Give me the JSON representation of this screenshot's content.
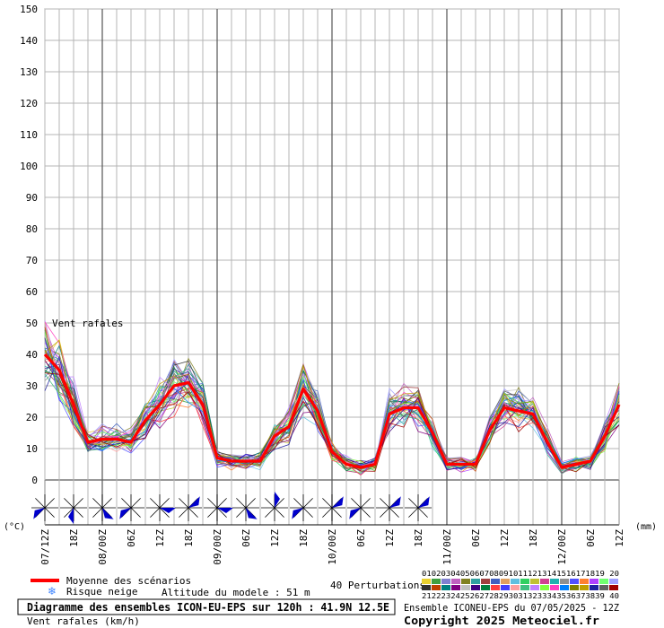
{
  "chart_data": {
    "type": "line",
    "annotation": "Vent rafales",
    "y_axis": {
      "min": 0,
      "max": 150,
      "step": 10,
      "ticks": [
        "150",
        "140",
        "130",
        "120",
        "110",
        "100",
        "90",
        "80",
        "70",
        "60",
        "50",
        "40",
        "30",
        "20",
        "10",
        "0"
      ]
    },
    "left_unit": "(°C)",
    "right_unit": "(mm)",
    "x_ticks": [
      "07/12Z",
      "18Z",
      "08/00Z",
      "06Z",
      "12Z",
      "18Z",
      "09/00Z",
      "06Z",
      "12Z",
      "18Z",
      "10/00Z",
      "06Z",
      "12Z",
      "18Z",
      "11/00Z",
      "06Z",
      "12Z",
      "18Z",
      "12/00Z",
      "06Z",
      "12Z"
    ],
    "mean_series": {
      "name": "Moyenne des scénarios",
      "color": "#ff0000",
      "x": [
        12,
        15,
        18,
        21,
        24,
        27,
        30,
        33,
        36,
        39,
        42,
        45,
        48,
        51,
        54,
        57,
        60,
        63,
        66,
        69,
        72,
        75,
        78,
        81,
        84,
        87,
        90,
        93,
        96,
        99,
        102,
        105,
        108,
        111,
        114,
        117,
        120,
        123,
        126,
        129,
        132
      ],
      "values": [
        40,
        35,
        24,
        12,
        13,
        13,
        12,
        19,
        24,
        30,
        31,
        24,
        7,
        6,
        6,
        6,
        14,
        17,
        29,
        22,
        9,
        5,
        4,
        5,
        21,
        23,
        23,
        15,
        5,
        5,
        5,
        16,
        23,
        22,
        21,
        12,
        4,
        5,
        6,
        14,
        24
      ]
    },
    "ensemble": {
      "count": 40,
      "spread_low_ratio": 0.72,
      "spread_high_ratio": 1.35
    },
    "wind_barbs": [
      {
        "x": 12,
        "dir": "SW"
      },
      {
        "x": 18,
        "dir": "S"
      },
      {
        "x": 24,
        "dir": "SE"
      },
      {
        "x": 30,
        "dir": "SW"
      },
      {
        "x": 36,
        "dir": "E"
      },
      {
        "x": 42,
        "dir": "NE"
      },
      {
        "x": 48,
        "dir": "E"
      },
      {
        "x": 54,
        "dir": "SE"
      },
      {
        "x": 60,
        "dir": "N"
      },
      {
        "x": 66,
        "dir": "SW"
      },
      {
        "x": 72,
        "dir": "NE"
      },
      {
        "x": 78,
        "dir": "SW"
      },
      {
        "x": 84,
        "dir": "NE"
      },
      {
        "x": 90,
        "dir": "NE"
      }
    ],
    "legend": {
      "mean_label": "Moyenne des scénarios",
      "snow_label": "Risque neige",
      "altitude_label": "Altitude du modele : 51 m",
      "perturbations_label": "40 Perturbations",
      "members_row1": "01020304050607080910111213141516171819 20",
      "members_row2": "21222324252627282930313233343536373839 40"
    },
    "footer": {
      "title": "Diagramme des ensembles ICON-EU-EPS sur 120h : 41.9N 12.5E",
      "variable": "Vent rafales (km/h)",
      "run": "Ensemble ICONEU-EPS du 07/05/2025 - 12Z",
      "copyright": "Copyright 2025 Meteociel.fr"
    },
    "colors": {
      "grid": "#b4b4b4",
      "day_line": "#555555",
      "mean": "#ff0000",
      "barb": "#0000cc",
      "snow": "#4488ff",
      "members": [
        "#e8d030",
        "#40a040",
        "#8080d0",
        "#c060c0",
        "#808020",
        "#30a0a0",
        "#a04040",
        "#4060c0",
        "#e0a060",
        "#60c0e0",
        "#30d060",
        "#c0c030",
        "#d04090",
        "#20b0b0",
        "#909090",
        "#5050ff",
        "#ff8030",
        "#b040ff",
        "#70ff70",
        "#a0a0ff",
        "#303030",
        "#c04000",
        "#008080",
        "#800080",
        "#c0c0c0",
        "#400080",
        "#008040",
        "#ff4040",
        "#4040ff",
        "#ffa0a0",
        "#40c080",
        "#c080ff",
        "#80ff40",
        "#ff40c0",
        "#0080ff",
        "#808000",
        "#c0a000",
        "#2020a0",
        "#606060",
        "#a00000"
      ]
    }
  }
}
